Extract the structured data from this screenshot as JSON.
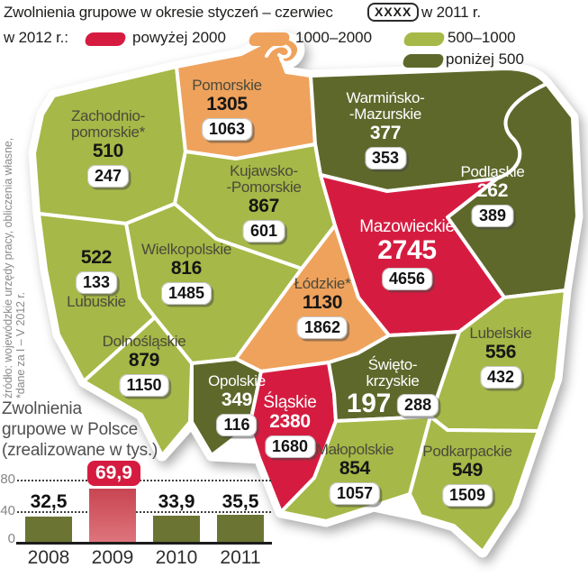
{
  "header": {
    "title": "Zwolnienia grupowe w okresie styczeń – czerwiec",
    "value_badge_sample": "XXXX",
    "badge_caption": "w 2011 r.",
    "year_prefix": "w 2012 r.:",
    "legend": [
      {
        "label": "powyżej 2000",
        "color": "#d51c40"
      },
      {
        "label": "1000–2000",
        "color": "#efa25c"
      },
      {
        "label": "500–1000",
        "color": "#a6b847"
      },
      {
        "label": "poniżej 500",
        "color": "#5e682b"
      }
    ]
  },
  "source_note": {
    "line1": "źródło: wojewódzkie urzędy pracy, obliczenia własne,",
    "line2": "*dane za I – V 2012 r."
  },
  "chart_data": [
    {
      "type": "heatmap",
      "subtype": "choropleth-map-of-poland",
      "title": "Zwolnienia grupowe w okresie styczeń – czerwiec w 2012 r. (liczba) i w 2011 r. (badge)",
      "legend_categories": [
        "powyżej 2000",
        "1000–2000",
        "500–1000",
        "poniżej 500"
      ],
      "regions": [
        {
          "name": "Zachodniopomorskie",
          "name_lines": [
            "Zachodnio-",
            "pomorskie*"
          ],
          "layoffs_2012": 510,
          "layoffs_2011": 247,
          "category": "500–1000"
        },
        {
          "name": "Pomorskie",
          "name_lines": [
            "Pomorskie"
          ],
          "layoffs_2012": 1305,
          "layoffs_2011": 1063,
          "category": "1000–2000"
        },
        {
          "name": "Warmińsko-Mazurskie",
          "name_lines": [
            "Warmińsko-",
            "-Mazurskie"
          ],
          "layoffs_2012": 377,
          "layoffs_2011": 353,
          "category": "poniżej 500"
        },
        {
          "name": "Podlaskie",
          "name_lines": [
            "Podlaskie"
          ],
          "layoffs_2012": 262,
          "layoffs_2011": 389,
          "category": "poniżej 500"
        },
        {
          "name": "Kujawsko-Pomorskie",
          "name_lines": [
            "Kujawsko-",
            "-Pomorskie"
          ],
          "layoffs_2012": 867,
          "layoffs_2011": 601,
          "category": "500–1000"
        },
        {
          "name": "Mazowieckie",
          "name_lines": [
            "Mazowieckie"
          ],
          "layoffs_2012": 2745,
          "layoffs_2011": 4656,
          "category": "powyżej 2000"
        },
        {
          "name": "Wielkopolskie",
          "name_lines": [
            "Wielkopolskie"
          ],
          "layoffs_2012": 816,
          "layoffs_2011": 1485,
          "category": "500–1000"
        },
        {
          "name": "Lubuskie",
          "name_lines": [
            "Lubuskie"
          ],
          "layoffs_2012": 522,
          "layoffs_2011": 133,
          "category": "500–1000"
        },
        {
          "name": "Łódzkie",
          "name_lines": [
            "Łódzkie*"
          ],
          "layoffs_2012": 1130,
          "layoffs_2011": 1862,
          "category": "1000–2000"
        },
        {
          "name": "Lubelskie",
          "name_lines": [
            "Lubelskie"
          ],
          "layoffs_2012": 556,
          "layoffs_2011": 432,
          "category": "500–1000"
        },
        {
          "name": "Dolnośląskie",
          "name_lines": [
            "Dolnośląskie"
          ],
          "layoffs_2012": 879,
          "layoffs_2011": 1150,
          "category": "500–1000"
        },
        {
          "name": "Opolskie",
          "name_lines": [
            "Opolskie"
          ],
          "layoffs_2012": 349,
          "layoffs_2011": 116,
          "category": "poniżej 500"
        },
        {
          "name": "Śląskie",
          "name_lines": [
            "Śląskie"
          ],
          "layoffs_2012": 2380,
          "layoffs_2011": 1680,
          "category": "powyżej 2000"
        },
        {
          "name": "Świętokrzyskie",
          "name_lines": [
            "Święto-",
            "krzyskie"
          ],
          "layoffs_2012": 197,
          "layoffs_2011": 288,
          "category": "poniżej 500"
        },
        {
          "name": "Małopolskie",
          "name_lines": [
            "Małopolskie"
          ],
          "layoffs_2012": 854,
          "layoffs_2011": 1057,
          "category": "500–1000"
        },
        {
          "name": "Podkarpackie",
          "name_lines": [
            "Podkarpackie"
          ],
          "layoffs_2012": 549,
          "layoffs_2011": 1509,
          "category": "500–1000"
        }
      ]
    },
    {
      "type": "bar",
      "title_lines": [
        "Zwolnienia",
        "grupowe w Polsce",
        "(zrealizowane w tys.)"
      ],
      "title": "Zwolnienia grupowe w Polsce (zrealizowane w tys.)",
      "categories": [
        "2008",
        "2009",
        "2010",
        "2011"
      ],
      "values": [
        32.5,
        69.9,
        33.9,
        35.5
      ],
      "value_labels": [
        "32,5",
        "69,9",
        "33,9",
        "35,5"
      ],
      "highlight_index": 1,
      "ylim": [
        0,
        80
      ],
      "yticks": [
        0,
        40,
        80
      ],
      "bar_color": "#6c7434",
      "highlight_color": "#d51c40",
      "grid": "dotted"
    }
  ]
}
